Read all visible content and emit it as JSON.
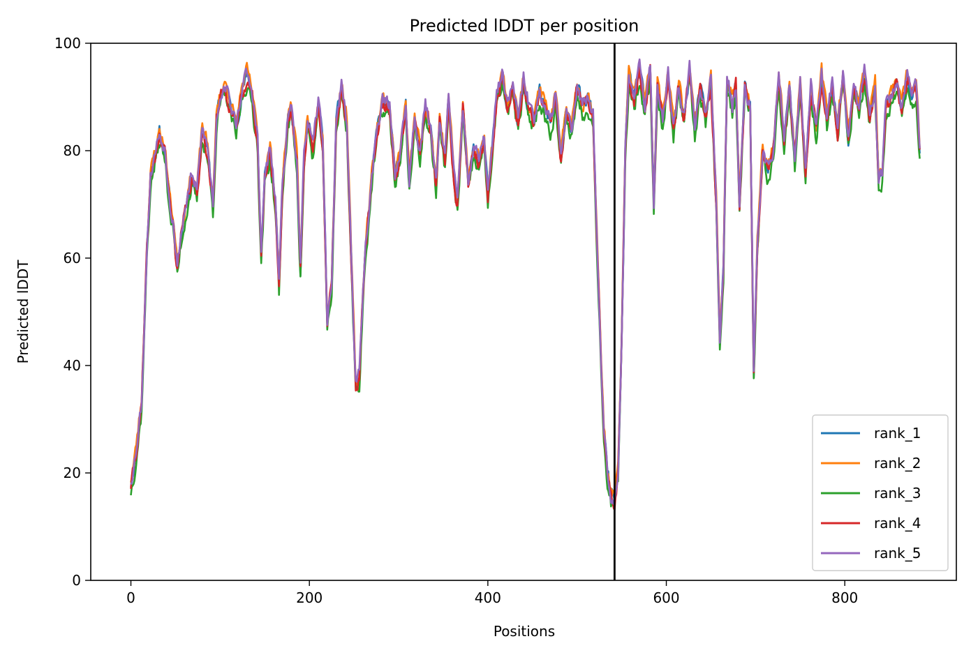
{
  "chart_data": {
    "type": "line",
    "title": "Predicted lDDT per position",
    "xlabel": "Positions",
    "ylabel": "Predicted lDDT",
    "xlim": [
      -45,
      925
    ],
    "ylim": [
      0,
      100
    ],
    "xticks": [
      0,
      200,
      400,
      600,
      800
    ],
    "yticks": [
      0,
      20,
      40,
      60,
      80,
      100
    ],
    "grid": false,
    "legend_position": "lower-right",
    "vline": {
      "x": 542,
      "color": "#000000"
    },
    "length": 884,
    "keypoints": [
      [
        0,
        18
      ],
      [
        5,
        23
      ],
      [
        12,
        33
      ],
      [
        18,
        62
      ],
      [
        22,
        75
      ],
      [
        28,
        80
      ],
      [
        32,
        83
      ],
      [
        38,
        80
      ],
      [
        44,
        70
      ],
      [
        48,
        66
      ],
      [
        52,
        58
      ],
      [
        56,
        64
      ],
      [
        62,
        70
      ],
      [
        68,
        75
      ],
      [
        74,
        72
      ],
      [
        80,
        84
      ],
      [
        86,
        80
      ],
      [
        92,
        70
      ],
      [
        96,
        86
      ],
      [
        100,
        90
      ],
      [
        106,
        92
      ],
      [
        112,
        88
      ],
      [
        118,
        84
      ],
      [
        124,
        91
      ],
      [
        130,
        94
      ],
      [
        136,
        90
      ],
      [
        142,
        82
      ],
      [
        146,
        60
      ],
      [
        150,
        75
      ],
      [
        156,
        80
      ],
      [
        162,
        70
      ],
      [
        166,
        55
      ],
      [
        170,
        74
      ],
      [
        176,
        86
      ],
      [
        180,
        88
      ],
      [
        186,
        78
      ],
      [
        190,
        58
      ],
      [
        194,
        78
      ],
      [
        198,
        86
      ],
      [
        204,
        80
      ],
      [
        210,
        89
      ],
      [
        215,
        82
      ],
      [
        220,
        48
      ],
      [
        225,
        55
      ],
      [
        230,
        85
      ],
      [
        236,
        92
      ],
      [
        242,
        85
      ],
      [
        248,
        55
      ],
      [
        252,
        36
      ],
      [
        256,
        38
      ],
      [
        262,
        60
      ],
      [
        270,
        75
      ],
      [
        276,
        84
      ],
      [
        282,
        89
      ],
      [
        290,
        88
      ],
      [
        296,
        75
      ],
      [
        302,
        80
      ],
      [
        308,
        88
      ],
      [
        312,
        74
      ],
      [
        318,
        86
      ],
      [
        324,
        80
      ],
      [
        330,
        88
      ],
      [
        336,
        84
      ],
      [
        342,
        74
      ],
      [
        346,
        86
      ],
      [
        352,
        78
      ],
      [
        356,
        90
      ],
      [
        362,
        75
      ],
      [
        366,
        70
      ],
      [
        372,
        88
      ],
      [
        378,
        74
      ],
      [
        384,
        80
      ],
      [
        390,
        78
      ],
      [
        396,
        82
      ],
      [
        400,
        72
      ],
      [
        405,
        80
      ],
      [
        410,
        90
      ],
      [
        416,
        94
      ],
      [
        422,
        88
      ],
      [
        428,
        92
      ],
      [
        434,
        85
      ],
      [
        440,
        93
      ],
      [
        446,
        88
      ],
      [
        452,
        86
      ],
      [
        458,
        91
      ],
      [
        464,
        88
      ],
      [
        470,
        85
      ],
      [
        476,
        90
      ],
      [
        482,
        78
      ],
      [
        488,
        88
      ],
      [
        494,
        84
      ],
      [
        500,
        92
      ],
      [
        506,
        88
      ],
      [
        512,
        90
      ],
      [
        518,
        86
      ],
      [
        522,
        65
      ],
      [
        526,
        45
      ],
      [
        530,
        28
      ],
      [
        534,
        20
      ],
      [
        538,
        16
      ],
      [
        542,
        15
      ],
      [
        546,
        20
      ],
      [
        550,
        45
      ],
      [
        554,
        80
      ],
      [
        558,
        94
      ],
      [
        564,
        90
      ],
      [
        570,
        95
      ],
      [
        576,
        88
      ],
      [
        582,
        95
      ],
      [
        586,
        70
      ],
      [
        590,
        92
      ],
      [
        596,
        86
      ],
      [
        602,
        94
      ],
      [
        608,
        84
      ],
      [
        614,
        92
      ],
      [
        620,
        86
      ],
      [
        626,
        95
      ],
      [
        632,
        84
      ],
      [
        638,
        92
      ],
      [
        644,
        86
      ],
      [
        650,
        93
      ],
      [
        656,
        70
      ],
      [
        660,
        45
      ],
      [
        664,
        58
      ],
      [
        668,
        94
      ],
      [
        674,
        88
      ],
      [
        678,
        92
      ],
      [
        682,
        70
      ],
      [
        688,
        92
      ],
      [
        694,
        88
      ],
      [
        698,
        38
      ],
      [
        702,
        62
      ],
      [
        708,
        80
      ],
      [
        714,
        76
      ],
      [
        720,
        80
      ],
      [
        726,
        94
      ],
      [
        732,
        82
      ],
      [
        738,
        92
      ],
      [
        744,
        78
      ],
      [
        750,
        93
      ],
      [
        756,
        76
      ],
      [
        762,
        92
      ],
      [
        768,
        84
      ],
      [
        774,
        94
      ],
      [
        780,
        86
      ],
      [
        786,
        92
      ],
      [
        792,
        84
      ],
      [
        798,
        94
      ],
      [
        804,
        82
      ],
      [
        810,
        92
      ],
      [
        816,
        88
      ],
      [
        822,
        94
      ],
      [
        828,
        86
      ],
      [
        834,
        92
      ],
      [
        838,
        74
      ],
      [
        842,
        76
      ],
      [
        846,
        88
      ],
      [
        852,
        90
      ],
      [
        858,
        92
      ],
      [
        864,
        88
      ],
      [
        870,
        94
      ],
      [
        876,
        90
      ],
      [
        880,
        92
      ],
      [
        884,
        80
      ]
    ],
    "series": [
      {
        "name": "rank_1",
        "color": "#1f77b4",
        "offset": 0.0,
        "seed": 11
      },
      {
        "name": "rank_2",
        "color": "#ff7f0e",
        "offset": 0.8,
        "seed": 23
      },
      {
        "name": "rank_3",
        "color": "#2ca02c",
        "offset": -1.6,
        "seed": 37
      },
      {
        "name": "rank_4",
        "color": "#d62728",
        "offset": -0.4,
        "seed": 41
      },
      {
        "name": "rank_5",
        "color": "#9467bd",
        "offset": 0.4,
        "seed": 53
      }
    ]
  }
}
